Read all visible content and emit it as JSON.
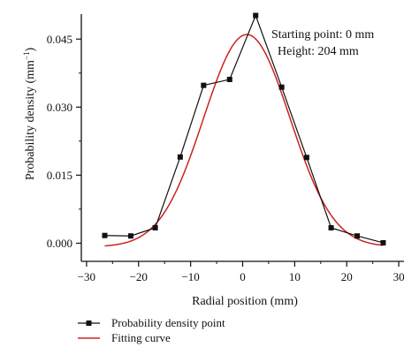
{
  "chart_data": {
    "type": "line",
    "xlabel": "Radial position (mm)",
    "ylabel": "Probability density (mm",
    "ylabel_sup": "−1",
    "ylabel_close": ")",
    "xlim": [
      -31,
      31
    ],
    "ylim": [
      -0.004,
      0.0505
    ],
    "xticks": [
      -30,
      -20,
      -10,
      0,
      10,
      20,
      30
    ],
    "xtick_labels": [
      "−30",
      "−20",
      "−10",
      "0",
      "10",
      "20",
      "30"
    ],
    "yticks": [
      0.0,
      0.015,
      0.03,
      0.045
    ],
    "ytick_labels": [
      "0.000",
      "0.015",
      "0.030",
      "0.045"
    ],
    "annotations": [
      "Starting point: 0 mm",
      "Height: 204 mm"
    ],
    "grid": false,
    "legend_position": "bottom-left",
    "series": [
      {
        "name": "Probability density point",
        "color": "#111111",
        "marker": "square",
        "x": [
          -26.5,
          -21.5,
          -16.8,
          -12,
          -7.5,
          -2.5,
          2.5,
          7.5,
          12.3,
          17,
          22,
          27
        ],
        "y": [
          0.0017,
          0.0016,
          0.0034,
          0.019,
          0.0348,
          0.0361,
          0.0502,
          0.0344,
          0.0189,
          0.0034,
          0.0016,
          0.0001
        ]
      },
      {
        "name": "Fitting curve",
        "color": "#cc2222",
        "type": "gaussian-fit",
        "amplitude": 0.0468,
        "center": 0.8,
        "sigma": 8.3,
        "offset": -0.0008,
        "x_range": [
          -26.5,
          27
        ]
      }
    ]
  }
}
